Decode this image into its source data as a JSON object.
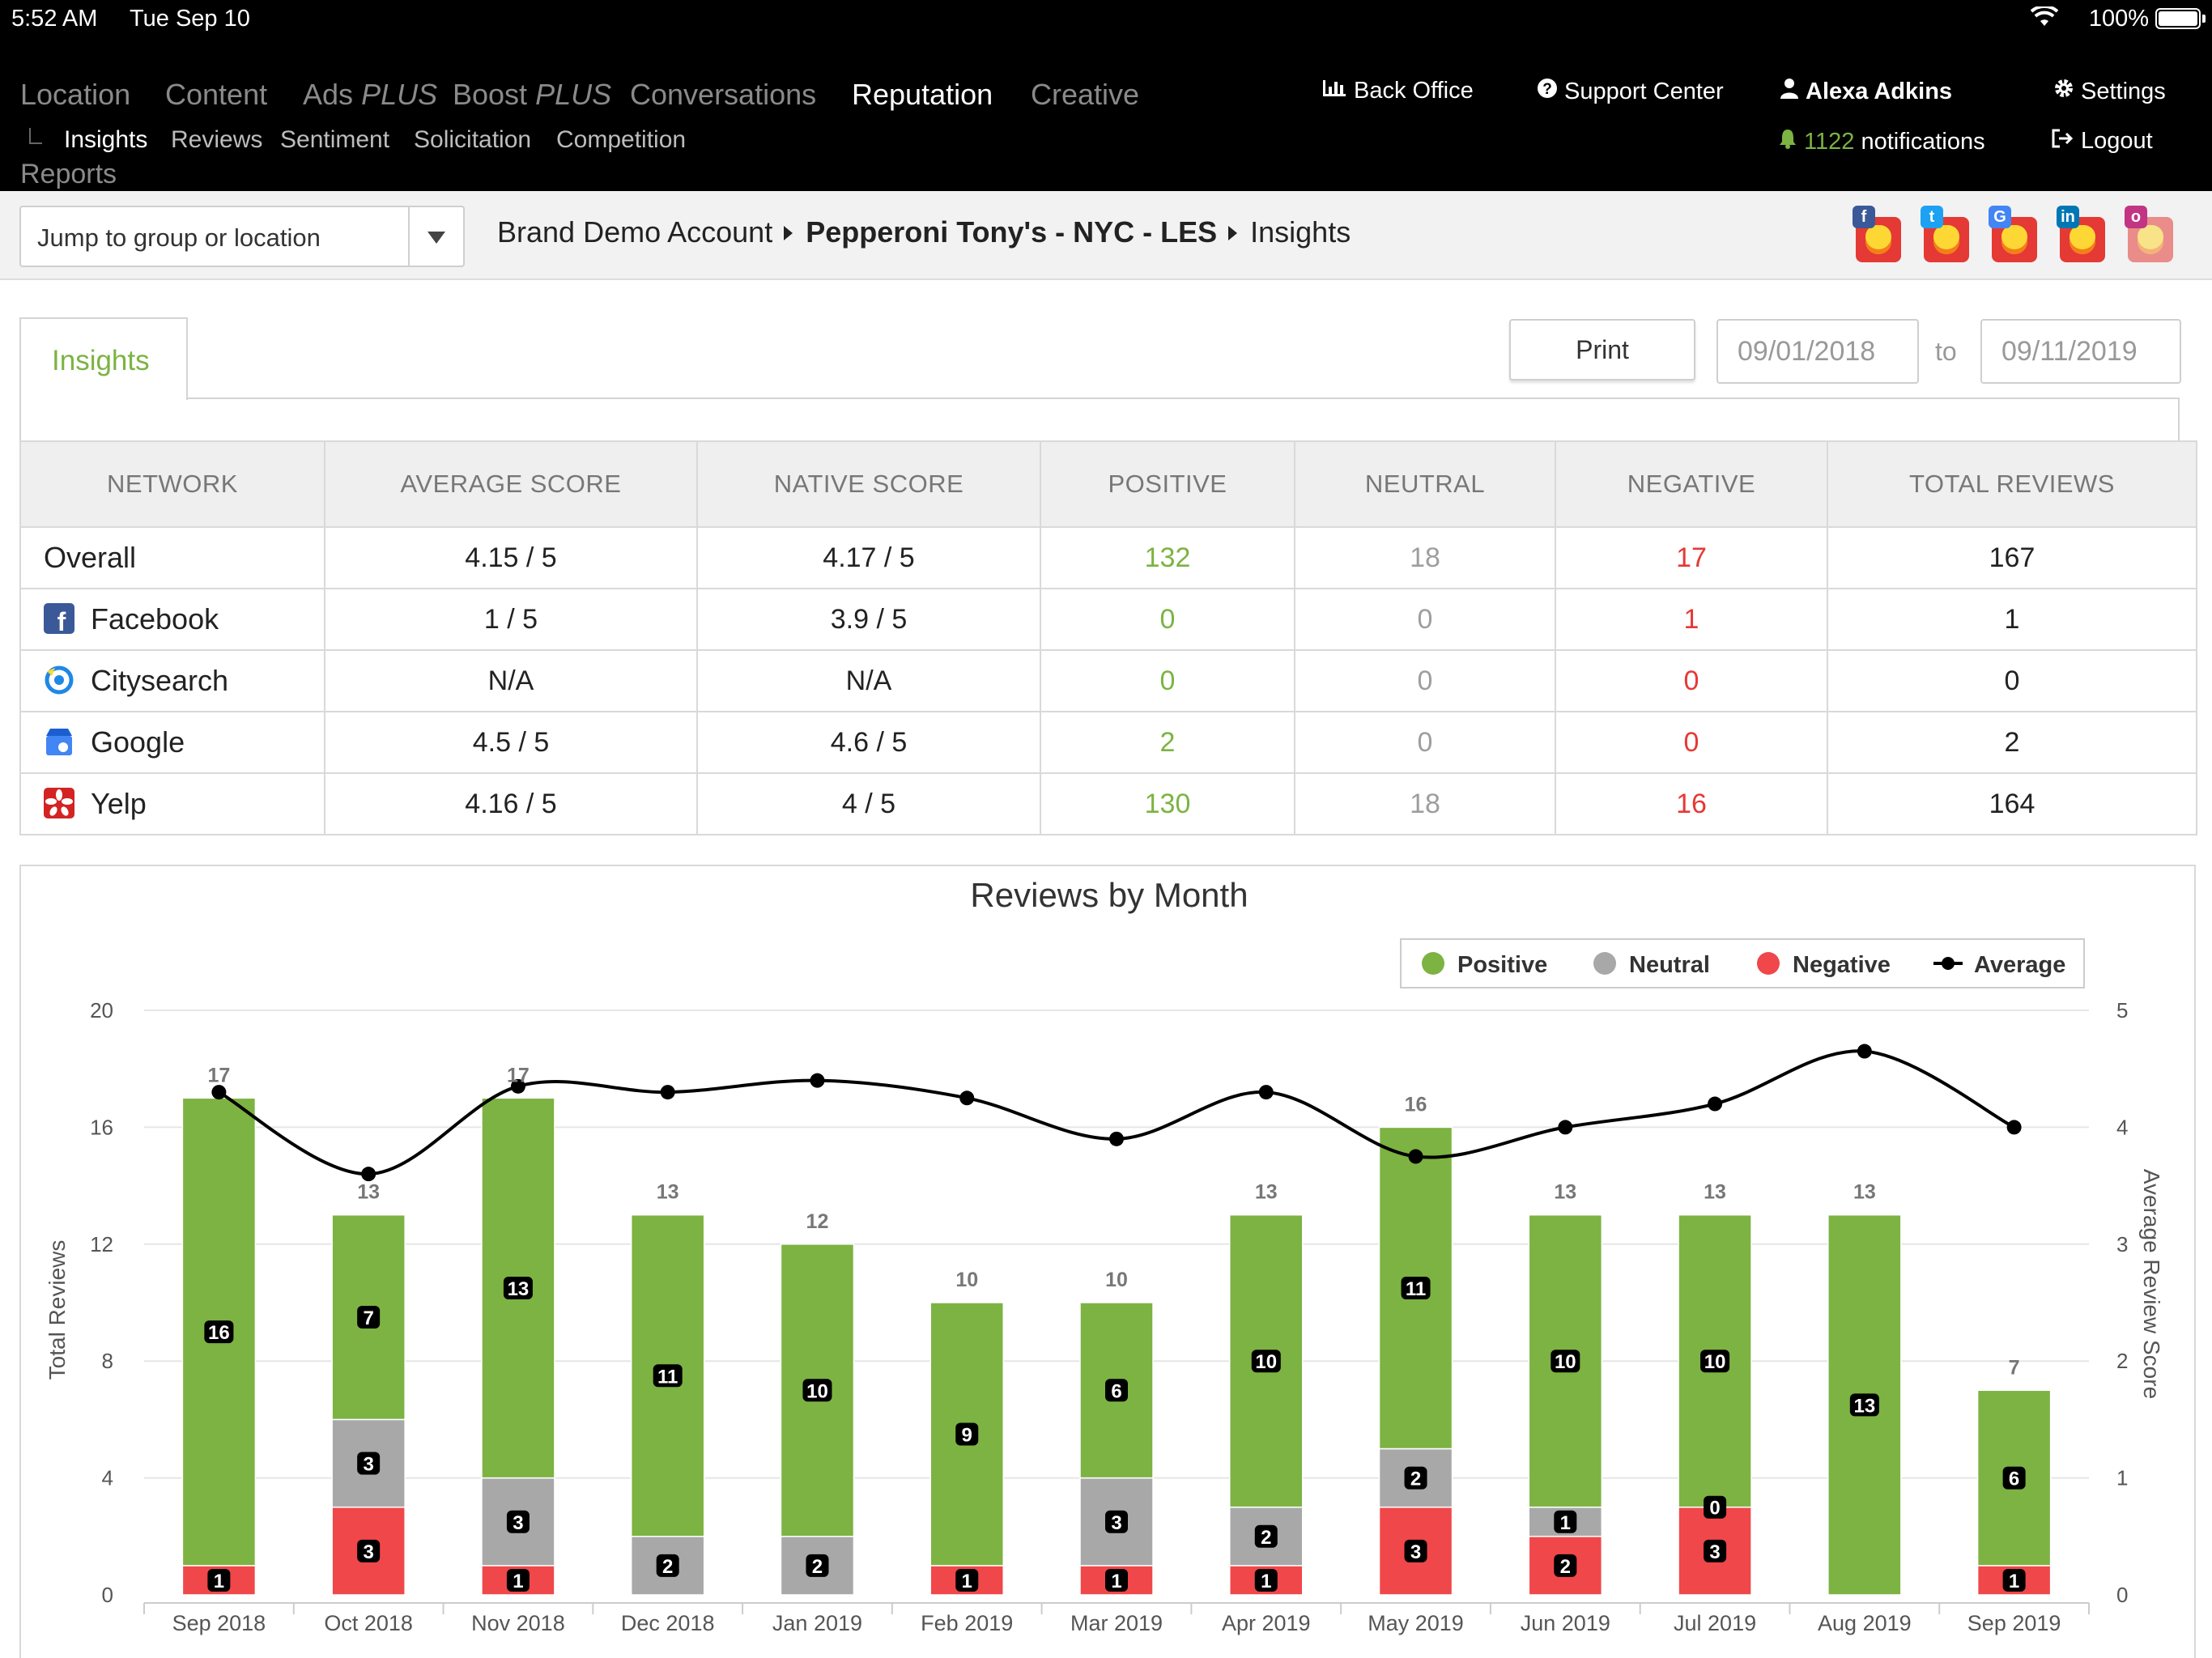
{
  "status_bar": {
    "time": "5:52 AM",
    "date": "Tue Sep 10",
    "battery": "100%"
  },
  "nav": {
    "main": [
      {
        "label": "Location",
        "suffix": ""
      },
      {
        "label": "Content",
        "suffix": ""
      },
      {
        "label": "Ads",
        "suffix": "PLUS"
      },
      {
        "label": "Boost",
        "suffix": "PLUS"
      },
      {
        "label": "Conversations",
        "suffix": ""
      },
      {
        "label": "Reputation",
        "suffix": ""
      },
      {
        "label": "Creative",
        "suffix": ""
      }
    ],
    "sub": [
      "Insights",
      "Reviews",
      "Sentiment",
      "Solicitation",
      "Competition"
    ],
    "reports": "Reports",
    "back_office": "Back Office",
    "support_center": "Support Center",
    "user_name": "Alexa Adkins",
    "notif_count": "1122",
    "notif_label": "notifications",
    "settings": "Settings",
    "logout": "Logout"
  },
  "crumb": {
    "jump_placeholder": "Jump to group or location",
    "account": "Brand Demo Account",
    "location": "Pepperoni Tony's - NYC - LES",
    "page": "Insights"
  },
  "insights_tab": "Insights",
  "print_label": "Print",
  "date_from": "09/01/2018",
  "date_to_label": "to",
  "date_to": "09/11/2019",
  "table": {
    "headers": [
      "NETWORK",
      "AVERAGE SCORE",
      "NATIVE SCORE",
      "POSITIVE",
      "NEUTRAL",
      "NEGATIVE",
      "TOTAL REVIEWS"
    ],
    "rows": [
      {
        "network": "Overall",
        "icon": "",
        "avg": "4.15 / 5",
        "native": "4.17 / 5",
        "pos": "132",
        "neu": "18",
        "neg": "17",
        "total": "167"
      },
      {
        "network": "Facebook",
        "icon": "facebook-icon",
        "avg": "1 / 5",
        "native": "3.9 / 5",
        "pos": "0",
        "neu": "0",
        "neg": "1",
        "total": "1"
      },
      {
        "network": "Citysearch",
        "icon": "citysearch-icon",
        "avg": "N/A",
        "native": "N/A",
        "pos": "0",
        "neu": "0",
        "neg": "0",
        "total": "0"
      },
      {
        "network": "Google",
        "icon": "google-my-business-icon",
        "avg": "4.5 / 5",
        "native": "4.6 / 5",
        "pos": "2",
        "neu": "0",
        "neg": "0",
        "total": "2"
      },
      {
        "network": "Yelp",
        "icon": "yelp-icon",
        "avg": "4.16 / 5",
        "native": "4 / 5",
        "pos": "130",
        "neu": "18",
        "neg": "16",
        "total": "164"
      }
    ]
  },
  "colors": {
    "positive": "#7cb342",
    "neutral": "#a8a8a8",
    "negative": "#f0474a",
    "average": "#000000",
    "nav_bg": "#000000"
  },
  "chart_data": {
    "type": "bar",
    "stacked": true,
    "title": "Reviews by Month",
    "ylabel": "Total Reviews",
    "y2label": "Average Review Score",
    "ylim": [
      0,
      20
    ],
    "y2lim": [
      0,
      5
    ],
    "yticks": [
      0,
      4,
      8,
      12,
      16,
      20
    ],
    "y2ticks": [
      0,
      1,
      2,
      3,
      4,
      5
    ],
    "legend_position": "top-right",
    "categories": [
      "Sep 2018",
      "Oct 2018",
      "Nov 2018",
      "Dec 2018",
      "Jan 2019",
      "Feb 2019",
      "Mar 2019",
      "Apr 2019",
      "May 2019",
      "Jun 2019",
      "Jul 2019",
      "Aug 2019",
      "Sep 2019"
    ],
    "series": [
      {
        "name": "Positive",
        "values": [
          16,
          7,
          13,
          11,
          10,
          9,
          6,
          10,
          11,
          10,
          10,
          13,
          6
        ]
      },
      {
        "name": "Neutral",
        "values": [
          0,
          3,
          3,
          2,
          2,
          0,
          3,
          2,
          2,
          1,
          0,
          0,
          0
        ]
      },
      {
        "name": "Negative",
        "values": [
          1,
          3,
          1,
          0,
          0,
          1,
          1,
          1,
          3,
          2,
          3,
          0,
          1
        ]
      }
    ],
    "totals": [
      17,
      13,
      17,
      13,
      12,
      10,
      10,
      13,
      16,
      13,
      13,
      13,
      7
    ],
    "average": {
      "name": "Average",
      "values": [
        4.3,
        3.6,
        4.35,
        4.3,
        4.4,
        4.25,
        3.9,
        4.3,
        3.75,
        4.0,
        4.2,
        4.65,
        4.0
      ]
    }
  }
}
